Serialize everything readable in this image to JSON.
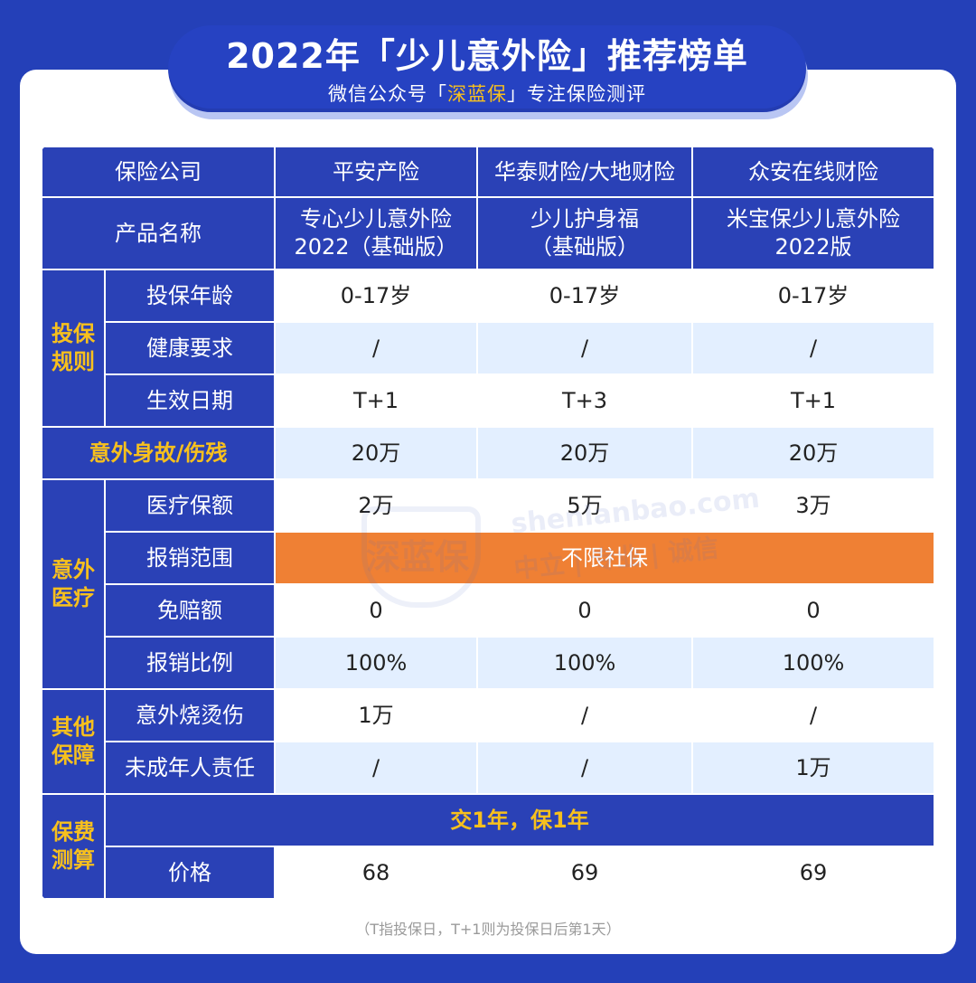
{
  "banner": {
    "title": "2022年「少儿意外险」推荐榜单",
    "subtitle_pre": "微信公众号「",
    "brand": "深蓝保",
    "subtitle_post": "」专注保险测评"
  },
  "table": {
    "company_label": "保险公司",
    "companies": [
      "平安产险",
      "华泰财险/大地财险",
      "众安在线财险"
    ],
    "product_label": "产品名称",
    "products": [
      [
        "专心少儿意外险",
        "2022（基础版）"
      ],
      [
        "少儿护身福",
        "（基础版）"
      ],
      [
        "米宝保少儿意外险",
        "2022版"
      ]
    ],
    "group_rules": "投保规则",
    "rules": [
      {
        "label": "投保年龄",
        "values": [
          "0-17岁",
          "0-17岁",
          "0-17岁"
        ]
      },
      {
        "label": "健康要求",
        "values": [
          "/",
          "/",
          "/"
        ]
      },
      {
        "label": "生效日期",
        "values": [
          "T+1",
          "T+3",
          "T+1"
        ]
      }
    ],
    "death": {
      "label": "意外身故/伤残",
      "values": [
        "20万",
        "20万",
        "20万"
      ]
    },
    "group_medical": "意外医疗",
    "medical": {
      "coverage": {
        "label": "医疗保额",
        "values": [
          "2万",
          "5万",
          "3万"
        ]
      },
      "scope": {
        "label": "报销范围",
        "value": "不限社保"
      },
      "deductible": {
        "label": "免赔额",
        "values": [
          "0",
          "0",
          "0"
        ]
      },
      "ratio": {
        "label": "报销比例",
        "values": [
          "100%",
          "100%",
          "100%"
        ]
      }
    },
    "group_other": "其他保障",
    "other": [
      {
        "label": "意外烧烫伤",
        "values": [
          "1万",
          "/",
          "/"
        ]
      },
      {
        "label": "未成年人责任",
        "values": [
          "/",
          "/",
          "1万"
        ]
      }
    ],
    "group_premium": "保费测算",
    "premium_term": "交1年，保1年",
    "price": {
      "label": "价格",
      "values": [
        "68",
        "69",
        "69"
      ]
    }
  },
  "watermark": {
    "site": "shenlanbao.com",
    "slogan": "中立 | 专业 | 诚信",
    "logo": "深蓝保"
  },
  "footnote": "（T指投保日，T+1则为投保日后第1天）"
}
